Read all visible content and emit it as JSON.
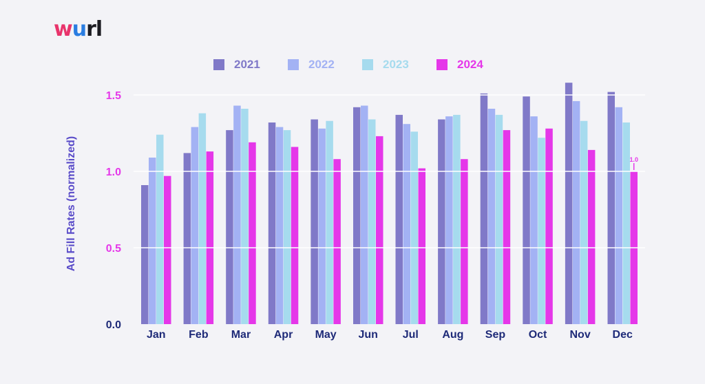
{
  "logo": "wurl",
  "chart_data": {
    "type": "bar",
    "ylabel": "Ad Fill Rates (normalized)",
    "xlabel": "",
    "ylim": [
      0,
      1.5
    ],
    "yticks": [
      "0.0",
      "0.5",
      "1.0",
      "1.5"
    ],
    "grid": true,
    "legend_position": "top",
    "categories": [
      "Jan",
      "Feb",
      "Mar",
      "Apr",
      "May",
      "Jun",
      "Jul",
      "Aug",
      "Sep",
      "Oct",
      "Nov",
      "Dec"
    ],
    "series": [
      {
        "name": "2021",
        "color": "#8079c8",
        "values": [
          0.91,
          1.12,
          1.27,
          1.32,
          1.34,
          1.42,
          1.37,
          1.34,
          1.51,
          1.49,
          1.58,
          1.52
        ]
      },
      {
        "name": "2022",
        "color": "#a3b2f4",
        "values": [
          1.09,
          1.29,
          1.43,
          1.29,
          1.28,
          1.43,
          1.31,
          1.36,
          1.41,
          1.36,
          1.46,
          1.42
        ]
      },
      {
        "name": "2023",
        "color": "#a6dbee",
        "values": [
          1.24,
          1.38,
          1.41,
          1.27,
          1.33,
          1.34,
          1.26,
          1.37,
          1.37,
          1.22,
          1.33,
          1.32
        ]
      },
      {
        "name": "2024",
        "color": "#e537e9",
        "values": [
          0.97,
          1.13,
          1.19,
          1.16,
          1.08,
          1.23,
          1.02,
          1.08,
          1.27,
          1.28,
          1.14,
          1.0
        ]
      }
    ],
    "annotation": {
      "category": "Dec",
      "series": "2024",
      "text": "1.0"
    },
    "colors": {
      "axis_text": "#1e2a78",
      "ytick_text": "#e537e9",
      "ylabel_text": "#5a4cc9",
      "grid": "#ffffff"
    }
  }
}
